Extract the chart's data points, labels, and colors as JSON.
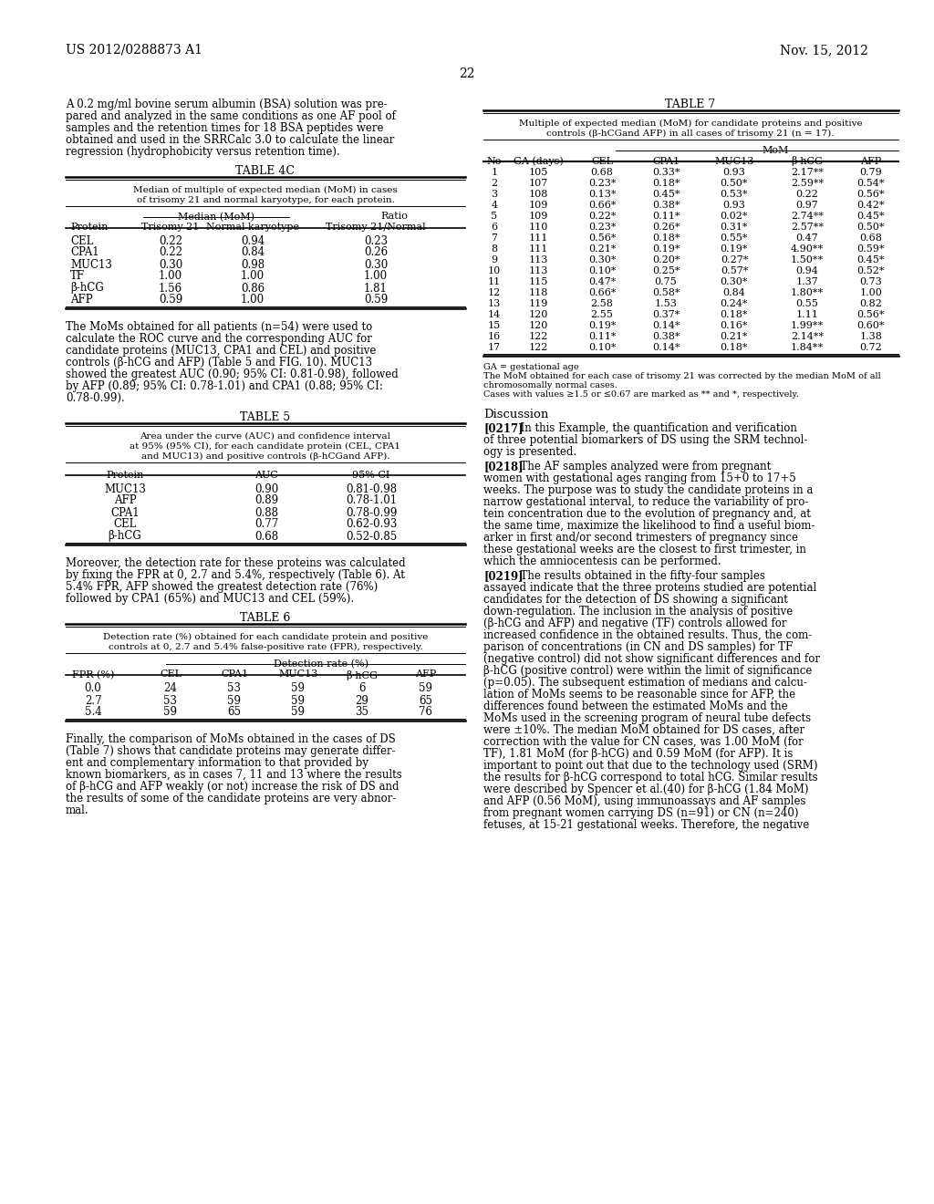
{
  "header_left": "US 2012/0288873 A1",
  "header_right": "Nov. 15, 2012",
  "page_number": "22",
  "bg_color": "#ffffff",
  "para1_lines": [
    "A 0.2 mg/ml bovine serum albumin (BSA) solution was pre-",
    "pared and analyzed in the same conditions as one AF pool of",
    "samples and the retention times for 18 BSA peptides were",
    "obtained and used in the SRRCalc 3.0 to calculate the linear",
    "regression (hydrophobicity versus retention time)."
  ],
  "table4c_title": "TABLE 4C",
  "table4c_subtitle_lines": [
    "Median of multiple of expected median (MoM) in cases",
    "of trisomy 21 and normal karyotype, for each protein."
  ],
  "table4c_subheader": "Median (MoM)",
  "table4c_ratio_header": "Ratio",
  "table4c_data": [
    [
      "CEL",
      "0.22",
      "0.94",
      "0.23"
    ],
    [
      "CPA1",
      "0.22",
      "0.84",
      "0.26"
    ],
    [
      "MUC13",
      "0.30",
      "0.98",
      "0.30"
    ],
    [
      "TF",
      "1.00",
      "1.00",
      "1.00"
    ],
    [
      "β-hCG",
      "1.56",
      "0.86",
      "1.81"
    ],
    [
      "AFP",
      "0.59",
      "1.00",
      "0.59"
    ]
  ],
  "para2_lines": [
    "The MoMs obtained for all patients (n=54) were used to",
    "calculate the ROC curve and the corresponding AUC for",
    "candidate proteins (MUC13, CPA1 and CEL) and positive",
    "controls (β-hCG and AFP) (Table 5 and FIG. 10). MUC13",
    "showed the greatest AUC (0.90; 95% CI: 0.81-0.98), followed",
    "by AFP (0.89; 95% CI: 0.78-1.01) and CPA1 (0.88; 95% CI:",
    "0.78-0.99)."
  ],
  "table5_title": "TABLE 5",
  "table5_subtitle_lines": [
    "Area under the curve (AUC) and confidence interval",
    "at 95% (95% CI), for each candidate protein (CEL, CPA1",
    "and MUC13) and positive controls (β-hCGand AFP)."
  ],
  "table5_data": [
    [
      "MUC13",
      "0.90",
      "0.81-0.98"
    ],
    [
      "AFP",
      "0.89",
      "0.78-1.01"
    ],
    [
      "CPA1",
      "0.88",
      "0.78-0.99"
    ],
    [
      "CEL",
      "0.77",
      "0.62-0.93"
    ],
    [
      "β-hCG",
      "0.68",
      "0.52-0.85"
    ]
  ],
  "para3_lines": [
    "Moreover, the detection rate for these proteins was calculated",
    "by fixing the FPR at 0, 2.7 and 5.4%, respectively (Table 6). At",
    "5.4% FPR, AFP showed the greatest detection rate (76%)",
    "followed by CPA1 (65%) and MUC13 and CEL (59%)."
  ],
  "table6_title": "TABLE 6",
  "table6_subtitle_lines": [
    "Detection rate (%) obtained for each candidate protein and positive",
    "controls at 0, 2.7 and 5.4% false-positive rate (FPR), respectively."
  ],
  "table6_subheader": "Detection rate (%)",
  "table6_col_headers": [
    "FPR (%)",
    "CEL",
    "CPA1",
    "MUC13",
    "β-hCG",
    "AFP"
  ],
  "table6_data": [
    [
      "0.0",
      "24",
      "53",
      "59",
      "6",
      "59"
    ],
    [
      "2.7",
      "53",
      "59",
      "59",
      "29",
      "65"
    ],
    [
      "5.4",
      "59",
      "65",
      "59",
      "35",
      "76"
    ]
  ],
  "para4_lines": [
    "Finally, the comparison of MoMs obtained in the cases of DS",
    "(Table 7) shows that candidate proteins may generate differ-",
    "ent and complementary information to that provided by",
    "known biomarkers, as in cases 7, 11 and 13 where the results",
    "of β-hCG and AFP weakly (or not) increase the risk of DS and",
    "the results of some of the candidate proteins are very abnor-",
    "mal."
  ],
  "table7_title": "TABLE 7",
  "table7_subtitle_lines": [
    "Multiple of expected median (MoM) for candidate proteins and positive",
    "controls (β-hCGand AFP) in all cases of trisomy 21 (n = 17)."
  ],
  "table7_mom_header": "MoM",
  "table7_col_headers": [
    "No",
    "GA (days)",
    "CEL",
    "CPA1",
    "MUC13",
    "β-hCG",
    "AFP"
  ],
  "table7_data": [
    [
      "1",
      "105",
      "0.68",
      "0.33*",
      "0.93",
      "2.17**",
      "0.79"
    ],
    [
      "2",
      "107",
      "0.23*",
      "0.18*",
      "0.50*",
      "2.59**",
      "0.54*"
    ],
    [
      "3",
      "108",
      "0.13*",
      "0.45*",
      "0.53*",
      "0.22",
      "0.56*"
    ],
    [
      "4",
      "109",
      "0.66*",
      "0.38*",
      "0.93",
      "0.97",
      "0.42*"
    ],
    [
      "5",
      "109",
      "0.22*",
      "0.11*",
      "0.02*",
      "2.74**",
      "0.45*"
    ],
    [
      "6",
      "110",
      "0.23*",
      "0.26*",
      "0.31*",
      "2.57**",
      "0.50*"
    ],
    [
      "7",
      "111",
      "0.56*",
      "0.18*",
      "0.55*",
      "0.47",
      "0.68"
    ],
    [
      "8",
      "111",
      "0.21*",
      "0.19*",
      "0.19*",
      "4.90**",
      "0.59*"
    ],
    [
      "9",
      "113",
      "0.30*",
      "0.20*",
      "0.27*",
      "1.50**",
      "0.45*"
    ],
    [
      "10",
      "113",
      "0.10*",
      "0.25*",
      "0.57*",
      "0.94",
      "0.52*"
    ],
    [
      "11",
      "115",
      "0.47*",
      "0.75",
      "0.30*",
      "1.37",
      "0.73"
    ],
    [
      "12",
      "118",
      "0.66*",
      "0.58*",
      "0.84",
      "1.80**",
      "1.00"
    ],
    [
      "13",
      "119",
      "2.58",
      "1.53",
      "0.24*",
      "0.55",
      "0.82"
    ],
    [
      "14",
      "120",
      "2.55",
      "0.37*",
      "0.18*",
      "1.11",
      "0.56*"
    ],
    [
      "15",
      "120",
      "0.19*",
      "0.14*",
      "0.16*",
      "1.99**",
      "0.60*"
    ],
    [
      "16",
      "122",
      "0.11*",
      "0.38*",
      "0.21*",
      "2.14**",
      "1.38"
    ],
    [
      "17",
      "122",
      "0.10*",
      "0.14*",
      "0.18*",
      "1.84**",
      "0.72"
    ]
  ],
  "table7_footnotes": [
    "GA = gestational age",
    "The MoM obtained for each case of trisomy 21 was corrected by the median MoM of all",
    "chromosomally normal cases.",
    "Cases with values ≥1.5 or ≤0.67 are marked as ** and *, respectively."
  ],
  "discussion_title": "Discussion",
  "disc_paras": [
    {
      "tag": "[0217]",
      "lines": [
        "  In this Example, the quantification and verification",
        "of three potential biomarkers of DS using the SRM technol-",
        "ogy is presented."
      ]
    },
    {
      "tag": "[0218]",
      "lines": [
        "  The AF samples analyzed were from pregnant",
        "women with gestational ages ranging from 15+0 to 17+5",
        "weeks. The purpose was to study the candidate proteins in a",
        "narrow gestational interval, to reduce the variability of pro-",
        "tein concentration due to the evolution of pregnancy and, at",
        "the same time, maximize the likelihood to find a useful biom-",
        "arker in first and/or second trimesters of pregnancy since",
        "these gestational weeks are the closest to first trimester, in",
        "which the amniocentesis can be performed."
      ]
    },
    {
      "tag": "[0219]",
      "lines": [
        "  The results obtained in the fifty-four samples",
        "assayed indicate that the three proteins studied are potential",
        "candidates for the detection of DS showing a significant",
        "down-regulation. The inclusion in the analysis of positive",
        "(β-hCG and AFP) and negative (TF) controls allowed for",
        "increased confidence in the obtained results. Thus, the com-",
        "parison of concentrations (in CN and DS samples) for TF",
        "(negative control) did not show significant differences and for",
        "β-hCG (positive control) were within the limit of significance",
        "(p=0.05). The subsequent estimation of medians and calcu-",
        "lation of MoMs seems to be reasonable since for AFP, the",
        "differences found between the estimated MoMs and the",
        "MoMs used in the screening program of neural tube defects",
        "were ±10%. The median MoM obtained for DS cases, after",
        "correction with the value for CN cases, was 1.00 MoM (for",
        "TF), 1.81 MoM (for β-hCG) and 0.59 MoM (for AFP). It is",
        "important to point out that due to the technology used (SRM)",
        "the results for β-hCG correspond to total hCG. Similar results",
        "were described by Spencer et al.(40) for β-hCG (1.84 MoM)",
        "and AFP (0.56 MoM), using immunoassays and AF samples",
        "from pregnant women carrying DS (n=91) or CN (n=240)",
        "fetuses, at 15-21 gestational weeks. Therefore, the negative"
      ]
    }
  ]
}
